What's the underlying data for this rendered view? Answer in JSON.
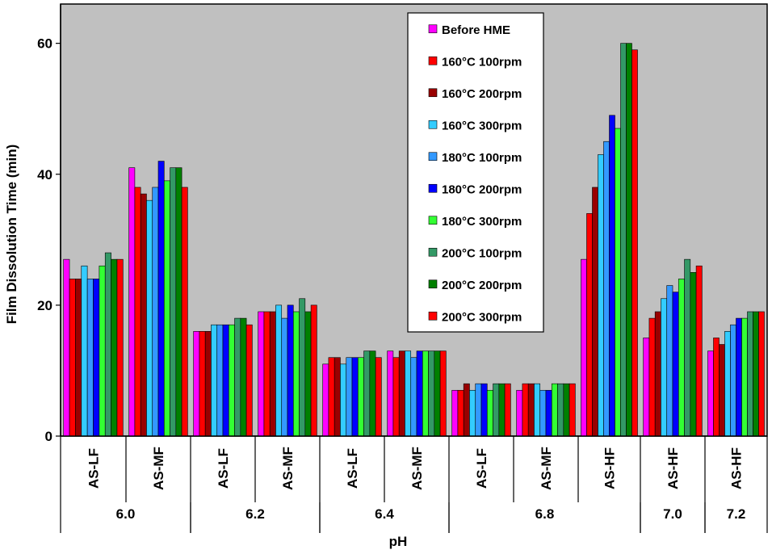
{
  "chart_data": {
    "type": "bar",
    "title": "",
    "xlabel": "pH",
    "ylabel": "Film Dissolution Time (min)",
    "ylim": [
      0,
      66
    ],
    "yticks": [
      0,
      20,
      40,
      60
    ],
    "grid": false,
    "legend_position": "top-right (inside)",
    "categories": [
      "AS-LF",
      "AS-MF",
      "AS-LF",
      "AS-MF",
      "AS-LF",
      "AS-MF",
      "AS-LF",
      "AS-MF",
      "AS-HF",
      "AS-HF",
      "AS-HF"
    ],
    "groups": [
      {
        "label": "6.0",
        "categories": [
          "AS-LF",
          "AS-MF"
        ]
      },
      {
        "label": "6.2",
        "categories": [
          "AS-LF",
          "AS-MF"
        ]
      },
      {
        "label": "6.4",
        "categories": [
          "AS-LF",
          "AS-MF"
        ]
      },
      {
        "label": "6.8",
        "categories": [
          "AS-LF",
          "AS-MF",
          "AS-HF"
        ]
      },
      {
        "label": "7.0",
        "categories": [
          "AS-HF"
        ]
      },
      {
        "label": "7.2",
        "categories": [
          "AS-HF"
        ]
      }
    ],
    "series": [
      {
        "name": "Before HME",
        "color": "#ff00ff",
        "values": [
          27,
          41,
          16,
          19,
          11,
          13,
          7,
          7,
          27,
          15,
          13
        ]
      },
      {
        "name": "160°C 100rpm",
        "color": "#ff0000",
        "values": [
          24,
          38,
          16,
          19,
          12,
          12,
          7,
          8,
          34,
          18,
          15
        ]
      },
      {
        "name": "160°C 200rpm",
        "color": "#990000",
        "values": [
          24,
          37,
          16,
          19,
          12,
          13,
          8,
          8,
          38,
          19,
          14
        ]
      },
      {
        "name": "160°C 300rpm",
        "color": "#33ccff",
        "values": [
          26,
          36,
          17,
          20,
          11,
          13,
          7,
          8,
          43,
          21,
          16
        ]
      },
      {
        "name": "180°C 100rpm",
        "color": "#3399ff",
        "values": [
          24,
          38,
          17,
          18,
          12,
          12,
          8,
          7,
          45,
          23,
          17
        ]
      },
      {
        "name": "180°C 200rpm",
        "color": "#0000ff",
        "values": [
          24,
          42,
          17,
          20,
          12,
          13,
          8,
          7,
          49,
          22,
          18
        ]
      },
      {
        "name": "180°C 300rpm",
        "color": "#33ff33",
        "values": [
          26,
          39,
          17,
          19,
          12,
          13,
          7,
          8,
          47,
          24,
          18
        ]
      },
      {
        "name": "200°C 100rpm",
        "color": "#339966",
        "values": [
          28,
          41,
          18,
          21,
          13,
          13,
          8,
          8,
          60,
          27,
          19
        ]
      },
      {
        "name": "200°C 200rpm",
        "color": "#008000",
        "values": [
          27,
          41,
          18,
          19,
          13,
          13,
          8,
          8,
          60,
          25,
          19
        ]
      },
      {
        "name": "200°C 300rpm",
        "color": "#ff0000",
        "values": [
          27,
          38,
          17,
          20,
          12,
          13,
          8,
          8,
          59,
          26,
          19
        ]
      }
    ],
    "colors": {
      "plot_background": "#c0c0c0",
      "axis": "#000000"
    }
  }
}
